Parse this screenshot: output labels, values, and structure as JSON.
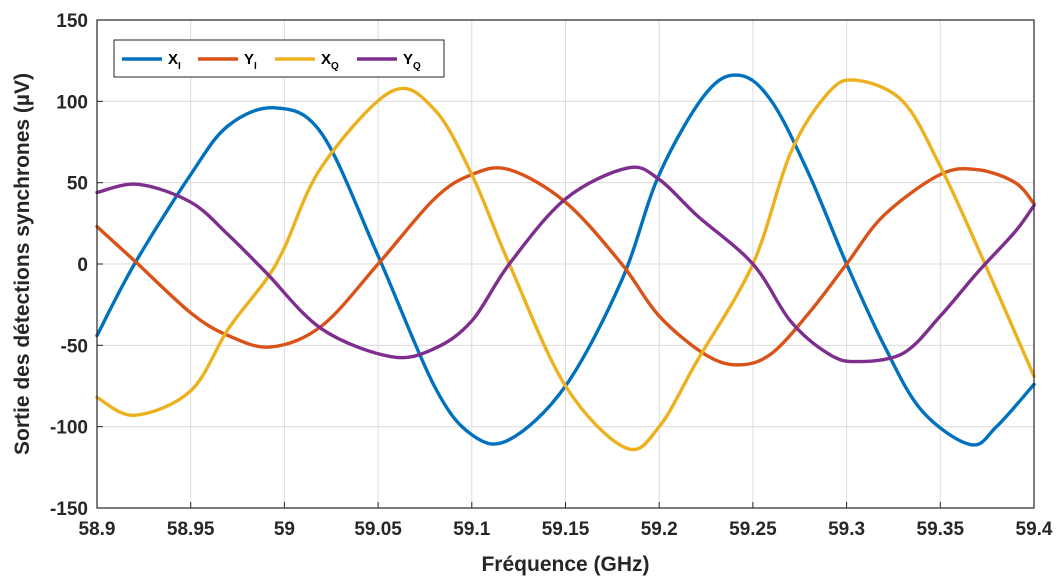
{
  "chart_data": {
    "type": "line",
    "title": "",
    "xlabel": "Fréquence (GHz)",
    "ylabel": "Sortie des détections synchrones (µV)",
    "xlim": [
      58.9,
      59.4
    ],
    "ylim": [
      -150,
      150
    ],
    "xticks": [
      58.9,
      58.95,
      59,
      59.05,
      59.1,
      59.15,
      59.2,
      59.25,
      59.3,
      59.35,
      59.4
    ],
    "xtick_labels": [
      "58.9",
      "58.95",
      "59",
      "59.05",
      "59.1",
      "59.15",
      "59.2",
      "59.25",
      "59.3",
      "59.35",
      "59.4"
    ],
    "yticks": [
      -150,
      -100,
      -50,
      0,
      50,
      100,
      150
    ],
    "ytick_labels": [
      "-150",
      "-100",
      "-50",
      "0",
      "50",
      "100",
      "150"
    ],
    "grid": true,
    "legend_position": "top-left",
    "series": [
      {
        "name": "X_I",
        "base": "X",
        "sub": "I",
        "color": "#0072BD",
        "x": [
          58.9,
          58.92,
          58.95,
          58.97,
          58.995,
          59.02,
          59.05,
          59.08,
          59.1,
          59.12,
          59.15,
          59.18,
          59.2,
          59.225,
          59.243,
          59.26,
          59.28,
          59.3,
          59.32,
          59.34,
          59.366,
          59.38,
          59.4
        ],
        "y": [
          -44,
          0,
          55,
          85,
          96,
          80,
          5,
          -75,
          -105,
          -108,
          -75,
          -10,
          55,
          105,
          116,
          100,
          55,
          0,
          -50,
          -90,
          -111,
          -100,
          -74
        ]
      },
      {
        "name": "Y_I",
        "base": "Y",
        "sub": "I",
        "color": "#D95319",
        "x": [
          58.9,
          58.92,
          58.95,
          58.97,
          58.993,
          59.02,
          59.05,
          59.08,
          59.1,
          59.12,
          59.15,
          59.18,
          59.2,
          59.225,
          59.243,
          59.26,
          59.28,
          59.3,
          59.32,
          59.35,
          59.37,
          59.39,
          59.4
        ],
        "y": [
          23,
          2,
          -30,
          -44,
          -51,
          -38,
          0,
          40,
          55,
          58,
          38,
          0,
          -32,
          -56,
          -62,
          -55,
          -30,
          0,
          30,
          55,
          58,
          50,
          37
        ]
      },
      {
        "name": "X_Q",
        "base": "X",
        "sub": "Q",
        "color": "#EDB120",
        "x": [
          58.9,
          58.92,
          58.95,
          58.97,
          58.99,
          59.0,
          59.02,
          59.057,
          59.08,
          59.1,
          59.12,
          59.15,
          59.182,
          59.2,
          59.22,
          59.25,
          59.27,
          59.29,
          59.305,
          59.33,
          59.35,
          59.37,
          59.4
        ],
        "y": [
          -82,
          -93,
          -78,
          -40,
          -10,
          10,
          60,
          106,
          95,
          55,
          0,
          -75,
          -113,
          -100,
          -60,
          0,
          68,
          105,
          113,
          100,
          60,
          10,
          -69
        ]
      },
      {
        "name": "Y_Q",
        "base": "Y",
        "sub": "Q",
        "color": "#7E2F8E",
        "x": [
          58.9,
          58.922,
          58.95,
          58.97,
          58.99,
          59.02,
          59.057,
          59.08,
          59.1,
          59.12,
          59.15,
          59.183,
          59.2,
          59.22,
          59.25,
          59.27,
          59.29,
          59.305,
          59.33,
          59.35,
          59.37,
          59.39,
          59.4
        ],
        "y": [
          44,
          49,
          38,
          18,
          -5,
          -40,
          -57,
          -52,
          -35,
          0,
          40,
          59,
          52,
          30,
          0,
          -35,
          -55,
          -60,
          -55,
          -32,
          -5,
          20,
          36
        ]
      }
    ]
  }
}
